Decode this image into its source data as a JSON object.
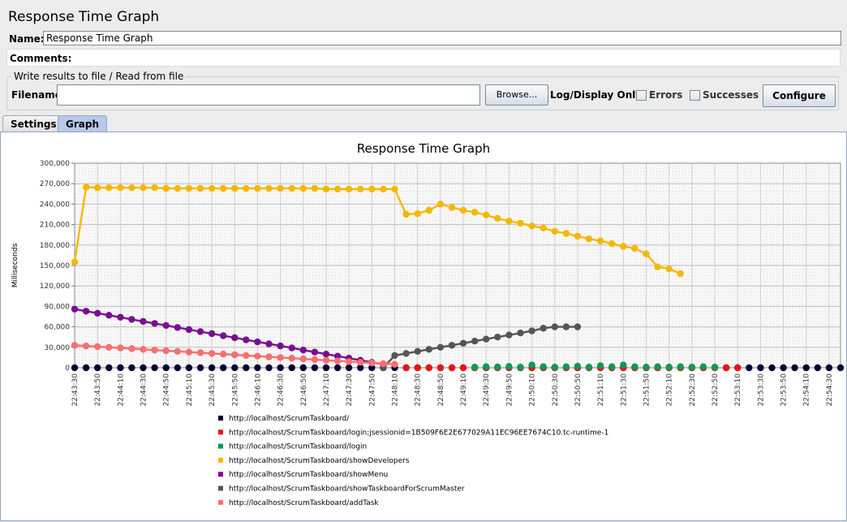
{
  "window": {
    "title": "Response Time Graph"
  },
  "form": {
    "name_label": "Name:",
    "name_value": "Response Time Graph",
    "comments_label": "Comments:",
    "file_group_label": "Write results to file / Read from file",
    "filename_label": "Filename",
    "filename_value": "",
    "browse_label": "Browse...",
    "log_display_label": "Log/Display Only:",
    "errors_label": "Errors",
    "errors_checked": false,
    "successes_label": "Successes",
    "successes_checked": false,
    "configure_label": "Configure"
  },
  "tabs": [
    {
      "label": "Settings",
      "active": false
    },
    {
      "label": "Graph",
      "active": true
    }
  ],
  "chart_data": {
    "type": "line",
    "title": "Response Time Graph",
    "ylabel": "Milliseconds",
    "xlabel": "",
    "ylim": [
      0,
      300000
    ],
    "yticks": [
      0,
      30000,
      60000,
      90000,
      120000,
      150000,
      180000,
      210000,
      240000,
      270000,
      300000
    ],
    "ytick_labels": [
      "0",
      "30,000",
      "60,000",
      "90,000",
      "120,000",
      "150,000",
      "180,000",
      "210,000",
      "240,000",
      "270,000",
      "300,000"
    ],
    "x_start_seconds": 81810,
    "x_end_seconds": 82480,
    "x_tick_labels": [
      "22:43:30",
      "22:43:50",
      "22:44:10",
      "22:44:30",
      "22:44:50",
      "22:45:10",
      "22:45:30",
      "22:45:50",
      "22:46:10",
      "22:46:30",
      "22:46:50",
      "22:47:10",
      "22:47:30",
      "22:47:50",
      "22:48:10",
      "22:48:30",
      "22:48:50",
      "22:49:10",
      "22:49:30",
      "22:49:50",
      "22:50:10",
      "22:50:30",
      "22:50:50",
      "22:51:10",
      "22:51:30",
      "22:51:50",
      "22:52:10",
      "22:52:30",
      "22:52:50",
      "22:53:10",
      "22:53:30",
      "22:53:50",
      "22:54:10",
      "22:54:30"
    ],
    "grid": true,
    "legend": "bottom",
    "series": [
      {
        "name": "http://localhost/ScrumTaskboard/",
        "color": "#000033",
        "line": false,
        "x_start": 81810,
        "x_step": 10,
        "values": [
          0,
          0,
          0,
          0,
          0,
          0,
          0,
          0,
          0,
          0,
          0,
          0,
          0,
          0,
          0,
          0,
          0,
          0,
          0,
          0,
          0,
          0,
          0,
          0,
          0,
          0,
          0,
          0,
          0,
          0,
          0,
          0,
          0,
          0,
          0,
          0,
          0,
          0,
          0,
          0,
          0,
          0,
          0,
          0,
          0,
          0,
          0,
          0,
          0,
          0,
          0,
          0,
          0,
          0,
          0,
          0,
          0,
          0,
          0,
          0,
          0,
          0,
          0,
          0,
          0,
          0,
          0,
          0
        ]
      },
      {
        "name": "http://localhost/ScrumTaskboard/login;jsessionid=1B509F6E2E677029A11EC96EE7674C10.tc-runtime-1",
        "color": "#ee1111",
        "line": false,
        "x_start": 82100,
        "x_step": 10,
        "values": [
          0,
          0,
          0,
          0,
          0,
          0,
          0,
          0,
          0,
          0,
          0,
          0,
          0,
          0,
          0,
          0,
          0,
          0,
          0,
          0,
          0,
          0,
          0,
          0,
          0,
          0,
          0,
          0,
          0,
          0
        ]
      },
      {
        "name": "http://localhost/ScrumTaskboard/login",
        "color": "#119955",
        "line": false,
        "x_start": 82160,
        "x_step": 10,
        "values": [
          1000,
          1500,
          1200,
          2000,
          1000,
          4000,
          1500,
          1000,
          1500,
          2500,
          1000,
          3000,
          1500,
          4000,
          1500,
          1000,
          1500,
          1000,
          1500,
          1000,
          1500,
          1000
        ]
      },
      {
        "name": "http://localhost/ScrumTaskboard/showDevelopers",
        "color": "#f5b800",
        "line": true,
        "x_start": 81810,
        "x_step": 10,
        "values": [
          155000,
          265000,
          264000,
          264000,
          264000,
          264000,
          264000,
          264000,
          263000,
          263000,
          263000,
          263000,
          263000,
          263000,
          263000,
          263000,
          263000,
          263000,
          263000,
          263000,
          263000,
          263000,
          262000,
          262000,
          262000,
          262000,
          262000,
          262000,
          262000,
          225000,
          226000,
          231000,
          240000,
          235000,
          231000,
          228000,
          224000,
          219000,
          215000,
          212000,
          208000,
          205000,
          200000,
          197000,
          193000,
          189000,
          186000,
          182000,
          178000,
          175000,
          167000,
          148000,
          145000,
          138000
        ]
      },
      {
        "name": "http://localhost/ScrumTaskboard/showMenu",
        "color": "#7a0e91",
        "line": true,
        "x_start": 81810,
        "x_step": 10,
        "values": [
          86000,
          83000,
          80000,
          77000,
          74000,
          71000,
          68000,
          65000,
          62000,
          59000,
          56000,
          53000,
          50000,
          47000,
          44000,
          41000,
          38000,
          35000,
          32000,
          29000,
          26000,
          23000,
          20000,
          17000,
          14000,
          11000,
          8000,
          5000
        ]
      },
      {
        "name": "http://localhost/ScrumTaskboard/showTaskboardForScrumMaster",
        "color": "#555555",
        "line": true,
        "x_start": 82080,
        "x_step": 10,
        "values": [
          0,
          18000,
          21000,
          24000,
          27000,
          30000,
          33000,
          36000,
          39000,
          42000,
          45000,
          48000,
          51000,
          54000,
          58000,
          60000,
          60000,
          60000
        ]
      },
      {
        "name": "http://localhost/ScrumTaskboard/addTask",
        "color": "#f76f6f",
        "line": true,
        "x_start": 81810,
        "x_step": 10,
        "values": [
          33000,
          32000,
          31000,
          30000,
          29000,
          28000,
          27000,
          26000,
          25000,
          24000,
          23000,
          22000,
          21000,
          20000,
          19000,
          18000,
          17000,
          16000,
          15000,
          14000,
          13000,
          12000,
          11000,
          10000,
          9000,
          8000,
          7000,
          6000,
          5000
        ]
      }
    ]
  }
}
